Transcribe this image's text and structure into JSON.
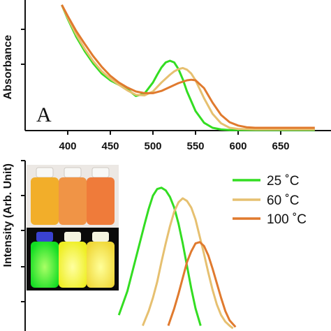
{
  "chart_data": [
    {
      "type": "line",
      "panel_label": "A",
      "ylabel": "Absorbance",
      "xlim": [
        370,
        690
      ],
      "x_ticks": [
        400,
        450,
        500,
        550,
        600,
        650
      ],
      "x_tick_labels": [
        "400",
        "450",
        "500",
        "550",
        "600",
        "650"
      ],
      "series": [
        {
          "color": "#33dd22",
          "x": [
            393,
            400,
            410,
            420,
            430,
            440,
            450,
            460,
            470,
            480,
            490,
            500,
            505,
            510,
            515,
            520,
            525,
            530,
            535,
            540,
            550,
            560,
            570,
            580,
            590,
            600,
            620,
            650,
            690
          ],
          "y": [
            2.25,
            2.0,
            1.68,
            1.42,
            1.2,
            1.02,
            0.9,
            0.82,
            0.74,
            0.62,
            0.66,
            0.86,
            1.0,
            1.13,
            1.22,
            1.25,
            1.22,
            1.1,
            0.92,
            0.7,
            0.35,
            0.14,
            0.05,
            0.02,
            0.01,
            0.01,
            0.01,
            0.01,
            0.01
          ]
        },
        {
          "color": "#e6c070",
          "x": [
            393,
            400,
            410,
            420,
            430,
            440,
            450,
            460,
            470,
            480,
            490,
            500,
            510,
            520,
            525,
            530,
            535,
            540,
            545,
            550,
            560,
            570,
            580,
            590,
            600,
            620,
            650,
            690
          ],
          "y": [
            2.25,
            2.02,
            1.72,
            1.46,
            1.24,
            1.06,
            0.93,
            0.82,
            0.72,
            0.64,
            0.63,
            0.7,
            0.86,
            1.0,
            1.06,
            1.1,
            1.12,
            1.09,
            1.02,
            0.9,
            0.58,
            0.3,
            0.13,
            0.05,
            0.03,
            0.02,
            0.02,
            0.02
          ]
        },
        {
          "color": "#e07a2e",
          "x": [
            393,
            400,
            410,
            420,
            430,
            440,
            450,
            460,
            470,
            480,
            490,
            500,
            510,
            520,
            530,
            540,
            545,
            550,
            560,
            570,
            580,
            590,
            600,
            610,
            620,
            650,
            690
          ],
          "y": [
            2.25,
            2.05,
            1.78,
            1.55,
            1.33,
            1.14,
            0.98,
            0.86,
            0.77,
            0.7,
            0.67,
            0.67,
            0.71,
            0.78,
            0.85,
            0.9,
            0.91,
            0.9,
            0.76,
            0.5,
            0.28,
            0.15,
            0.09,
            0.06,
            0.05,
            0.05,
            0.05
          ]
        }
      ]
    },
    {
      "type": "line",
      "ylabel": "Intensity (Arb. Unit)",
      "xlim": [
        370,
        690
      ],
      "legend_position": "top-right",
      "series": [
        {
          "name": "25 ˚C",
          "color": "#33dd22",
          "x": [
            460,
            470,
            480,
            490,
            495,
            500,
            505,
            510,
            515,
            520,
            525,
            530,
            535,
            540,
            545,
            550,
            556
          ],
          "y": [
            0.12,
            0.3,
            0.55,
            0.8,
            0.92,
            1.02,
            1.07,
            1.08,
            1.06,
            1.01,
            0.93,
            0.81,
            0.66,
            0.49,
            0.32,
            0.17,
            0.04
          ]
        },
        {
          "name": "60 ˚C",
          "color": "#e6c070",
          "x": [
            488,
            495,
            500,
            505,
            510,
            515,
            520,
            525,
            530,
            535,
            540,
            545,
            550,
            555,
            560,
            565,
            570,
            575,
            580,
            585,
            590,
            594
          ],
          "y": [
            0.04,
            0.15,
            0.25,
            0.37,
            0.52,
            0.66,
            0.79,
            0.9,
            0.97,
            1.0,
            0.98,
            0.93,
            0.84,
            0.71,
            0.58,
            0.44,
            0.31,
            0.2,
            0.12,
            0.07,
            0.04,
            0.02
          ]
        },
        {
          "name": "100 ˚C",
          "color": "#e07a2e",
          "x": [
            518,
            525,
            530,
            535,
            540,
            545,
            550,
            555,
            560,
            565,
            570,
            575,
            580,
            585,
            590,
            597
          ],
          "y": [
            0.04,
            0.17,
            0.28,
            0.4,
            0.52,
            0.6,
            0.66,
            0.67,
            0.64,
            0.57,
            0.47,
            0.36,
            0.25,
            0.15,
            0.08,
            0.03
          ]
        }
      ],
      "inset_photo": {
        "description_colors_top": [
          "#f0b030",
          "#f09548",
          "#ee7a3a"
        ],
        "description_colors_bottom": [
          "#22ee22",
          "#f4f030",
          "#f4e050"
        ]
      }
    }
  ]
}
